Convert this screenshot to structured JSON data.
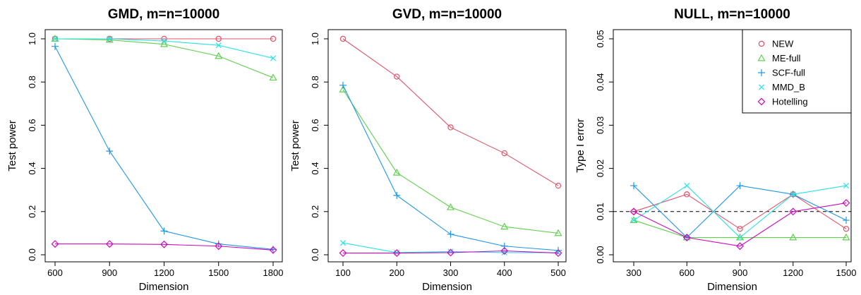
{
  "colors": {
    "NEW": "#DF536B",
    "ME-full": "#61D04F",
    "SCF-full": "#2297E6",
    "MMD_B": "#28E2E5",
    "Hotelling": "#CD0BBC"
  },
  "markers": {
    "NEW": "circle",
    "ME-full": "triangle",
    "SCF-full": "plus",
    "MMD_B": "cross",
    "Hotelling": "diamond"
  },
  "chart_data": [
    {
      "type": "line",
      "title": "GMD, m=n=10000",
      "xlabel": "Dimension",
      "ylabel": "Test power",
      "x": [
        600,
        900,
        1200,
        1500,
        1800
      ],
      "xticks": [
        "600",
        "900",
        "1200",
        "1500",
        "1800"
      ],
      "yticks": [
        "0.0",
        "0.2",
        "0.4",
        "0.6",
        "0.8",
        "1.0"
      ],
      "ylim": [
        0,
        1
      ],
      "series": [
        {
          "name": "NEW",
          "values": [
            1.0,
            1.0,
            1.0,
            1.0,
            1.0
          ]
        },
        {
          "name": "ME-full",
          "values": [
            1.0,
            0.995,
            0.975,
            0.92,
            0.82
          ]
        },
        {
          "name": "SCF-full",
          "values": [
            0.965,
            0.48,
            0.11,
            0.05,
            0.025
          ]
        },
        {
          "name": "MMD_B",
          "values": [
            1.0,
            1.0,
            0.99,
            0.97,
            0.91
          ]
        },
        {
          "name": "Hotelling",
          "values": [
            0.05,
            0.05,
            0.048,
            0.04,
            0.022
          ]
        }
      ]
    },
    {
      "type": "line",
      "title": "GVD, m=n=10000",
      "xlabel": "Dimension",
      "ylabel": "Test power",
      "x": [
        100,
        200,
        300,
        400,
        500
      ],
      "xticks": [
        "100",
        "200",
        "300",
        "400",
        "500"
      ],
      "yticks": [
        "0.0",
        "0.2",
        "0.4",
        "0.6",
        "0.8",
        "1.0"
      ],
      "ylim": [
        0,
        1
      ],
      "series": [
        {
          "name": "NEW",
          "values": [
            1.0,
            0.825,
            0.59,
            0.47,
            0.32
          ]
        },
        {
          "name": "ME-full",
          "values": [
            0.765,
            0.38,
            0.22,
            0.13,
            0.1
          ]
        },
        {
          "name": "SCF-full",
          "values": [
            0.785,
            0.275,
            0.095,
            0.04,
            0.02
          ]
        },
        {
          "name": "MMD_B",
          "values": [
            0.055,
            0.01,
            0.015,
            0.01,
            0.01
          ]
        },
        {
          "name": "Hotelling",
          "values": [
            0.008,
            0.008,
            0.01,
            0.018,
            0.008
          ]
        }
      ]
    },
    {
      "type": "line",
      "title": "NULL, m=n=10000",
      "xlabel": "Dimension",
      "ylabel": "Type I error",
      "x": [
        300,
        600,
        900,
        1200,
        1500
      ],
      "xticks": [
        "300",
        "600",
        "900",
        "1200",
        "1500"
      ],
      "yticks": [
        "0.00",
        "0.01",
        "0.02",
        "0.03",
        "0.04",
        "0.05"
      ],
      "ylim": [
        0,
        0.05
      ],
      "hline": 0.01,
      "legend": "top-right",
      "legend_entries": [
        "NEW",
        "ME-full",
        "SCF-full",
        "MMD_B",
        "Hotelling"
      ],
      "series": [
        {
          "name": "NEW",
          "values": [
            0.01,
            0.014,
            0.006,
            0.014,
            0.006
          ]
        },
        {
          "name": "ME-full",
          "values": [
            0.008,
            0.004,
            0.004,
            0.004,
            0.004
          ]
        },
        {
          "name": "SCF-full",
          "values": [
            0.016,
            0.004,
            0.016,
            0.014,
            0.008
          ]
        },
        {
          "name": "MMD_B",
          "values": [
            0.008,
            0.016,
            0.004,
            0.014,
            0.016
          ]
        },
        {
          "name": "Hotelling",
          "values": [
            0.01,
            0.004,
            0.002,
            0.01,
            0.012
          ]
        }
      ]
    }
  ]
}
